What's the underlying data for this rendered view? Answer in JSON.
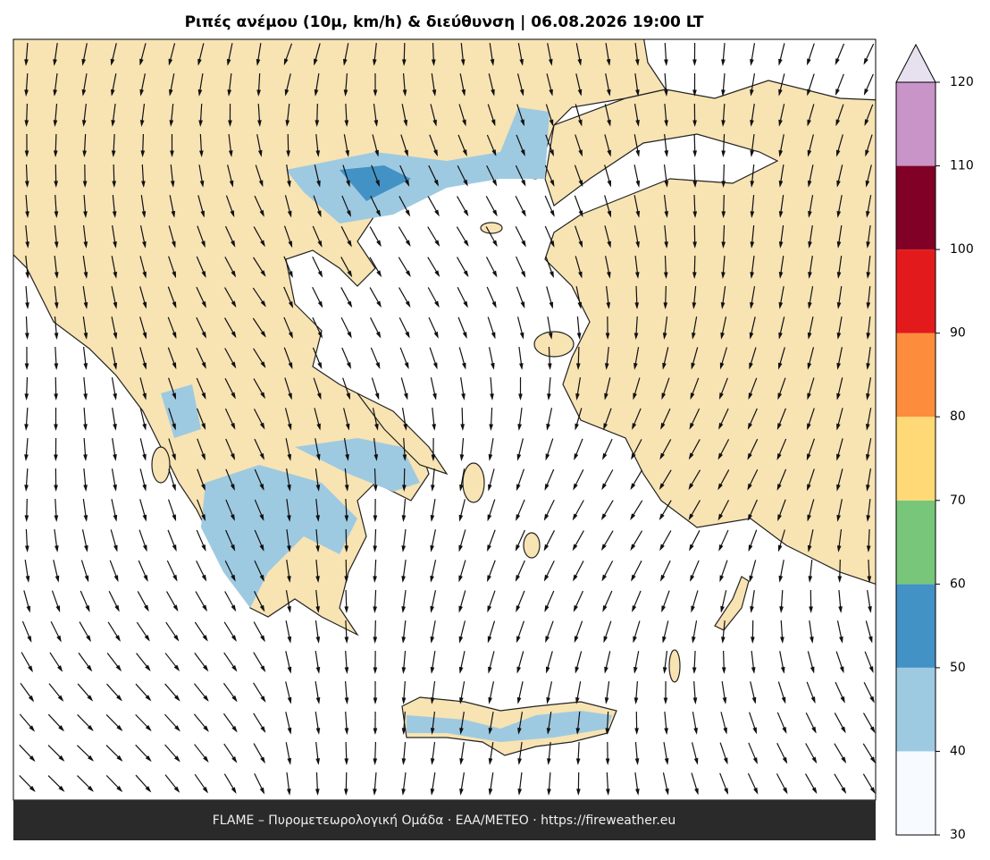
{
  "title": "Ριπές ανέμου (10μ, km/h) & διεύθυνση  |  06.08.2026 19:00 LT",
  "footer": "FLAME – Πυρομετεωρολογική Ομάδα · ΕΑΑ/METEO · https://fireweather.eu",
  "colorbar": {
    "ticks": [
      30,
      40,
      50,
      60,
      70,
      80,
      90,
      100,
      110,
      120
    ],
    "colors": [
      "#f7fbff",
      "#9ecae1",
      "#4292c6",
      "#78c679",
      "#fed976",
      "#fd8d3c",
      "#e31a1c",
      "#800026",
      "#c994c7"
    ],
    "over_color": "#e7e1ef"
  }
}
